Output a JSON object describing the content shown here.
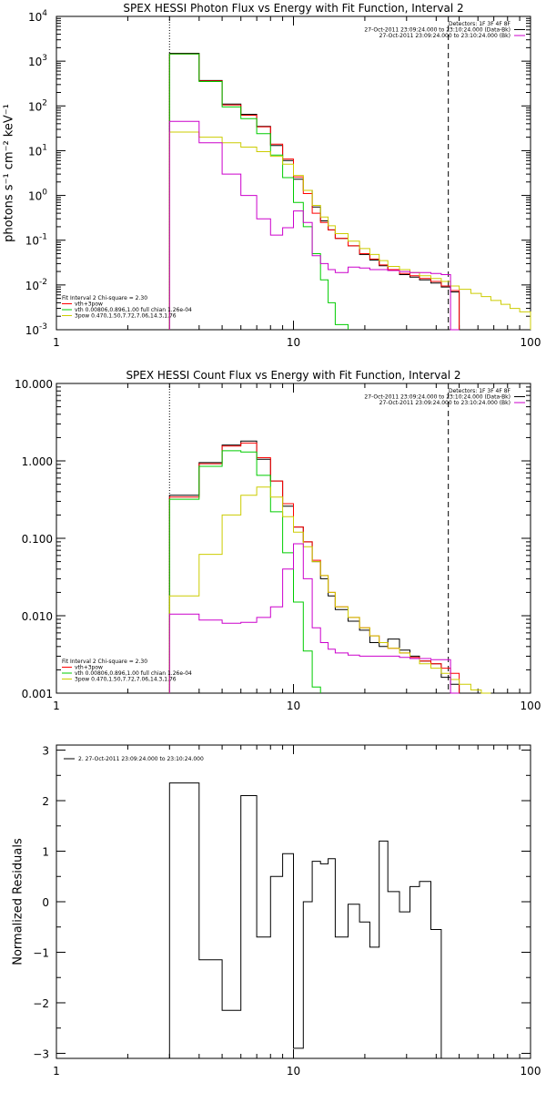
{
  "chart_data": [
    {
      "type": "line",
      "title": "SPEX HESSI Photon Flux vs Energy with Fit Function, Interval 2",
      "ylabel": "photons s⁻¹ cm⁻² keV⁻¹",
      "xlabel": "",
      "xscale": "log",
      "yscale": "log",
      "xlim": [
        1,
        100
      ],
      "ylim": [
        0.001,
        10000
      ],
      "xticks": [
        {
          "v": 1,
          "label": "1"
        },
        {
          "v": 10,
          "label": "10"
        },
        {
          "v": 100,
          "label": "100"
        }
      ],
      "yticks": [
        {
          "exp": -3,
          "label": "10",
          "sup": "-3"
        },
        {
          "exp": -2,
          "label": "10",
          "sup": "-2"
        },
        {
          "exp": -1,
          "label": "10",
          "sup": "-1"
        },
        {
          "exp": 0,
          "label": "10",
          "sup": "0"
        },
        {
          "exp": 1,
          "label": "10",
          "sup": "1"
        },
        {
          "exp": 2,
          "label": "10",
          "sup": "2"
        },
        {
          "exp": 3,
          "label": "10",
          "sup": "3"
        },
        {
          "exp": 4,
          "label": "10",
          "sup": "4"
        }
      ],
      "vlines": [
        {
          "x": 3,
          "style": "dotted"
        },
        {
          "x": 45,
          "style": "dashed"
        }
      ],
      "legend_top_right": [
        {
          "text": "Detectors: 1F 3F 4F 8F",
          "color": ""
        },
        {
          "text": "27-Oct-2011 23:09:24.000 to 23:10:24.000 (Data-Bk)",
          "color": "#000000"
        },
        {
          "text": "27-Oct-2011 23:09:24.000 to 23:10:24.000 (Bk)",
          "color": "#cc00cc"
        }
      ],
      "legend_bottom_left": [
        {
          "text": "Fit Interval 2   Chi-square = 2.30",
          "color": ""
        },
        {
          "text": "vth+3pow",
          "color": "#ff0000"
        },
        {
          "text": "vth 0.00806,0.896,1.00  full chian 1.26e-04",
          "color": "#00cc00"
        },
        {
          "text": "3pow 0.470,1.50,7.72,7.06,14.3,1.76",
          "color": "#cccc00"
        }
      ],
      "edges": [
        3,
        4,
        5,
        6,
        7,
        8,
        9,
        10,
        11,
        12,
        13,
        14,
        15,
        17,
        19,
        21,
        23,
        25,
        28,
        31,
        34,
        38,
        42,
        46,
        50,
        56,
        62,
        68,
        75,
        82,
        90,
        100
      ],
      "series": [
        {
          "name": "Data-Bk",
          "color": "#000000",
          "values": [
            1500,
            370,
            110,
            65,
            35,
            13,
            6,
            2.3,
            1.3,
            0.55,
            0.27,
            0.17,
            0.11,
            0.075,
            0.048,
            0.036,
            0.027,
            0.021,
            0.017,
            0.015,
            0.013,
            0.011,
            0.009,
            0.007
          ]
        },
        {
          "name": "vth+3pow",
          "color": "#ff0000",
          "values": [
            1450,
            360,
            105,
            62,
            34,
            14,
            6.5,
            2.6,
            1.1,
            0.4,
            0.25,
            0.17,
            0.11,
            0.075,
            0.05,
            0.038,
            0.028,
            0.022,
            0.018,
            0.016,
            0.014,
            0.012,
            0.0095,
            0.0075
          ]
        },
        {
          "name": "vth",
          "color": "#00cc00",
          "values": [
            1450,
            350,
            95,
            52,
            24,
            8,
            2.5,
            0.7,
            0.2,
            0.05,
            0.013,
            0.004,
            0.0013
          ]
        },
        {
          "name": "3pow",
          "color": "#cccc00",
          "values": [
            26,
            20,
            15,
            12,
            9.5,
            7.5,
            5,
            2.8,
            1.3,
            0.6,
            0.33,
            0.21,
            0.14,
            0.095,
            0.065,
            0.048,
            0.035,
            0.026,
            0.022,
            0.019,
            0.016,
            0.014,
            0.012,
            0.0095,
            0.008,
            0.0065,
            0.0055,
            0.0045,
            0.0037,
            0.003,
            0.0025
          ]
        },
        {
          "name": "Bk",
          "color": "#cc00cc",
          "values": [
            45,
            15,
            3,
            1,
            0.3,
            0.13,
            0.19,
            0.45,
            0.25,
            0.045,
            0.03,
            0.022,
            0.019,
            0.025,
            0.024,
            0.022,
            0.022,
            0.021,
            0.02,
            0.019,
            0.019,
            0.018,
            0.017,
            0.001
          ]
        }
      ]
    },
    {
      "type": "line",
      "title": "SPEX HESSI Count Flux vs Energy with Fit Function, Interval 2",
      "ylabel": "",
      "xlabel": "",
      "xscale": "log",
      "yscale": "log",
      "xlim": [
        1,
        100
      ],
      "ylim": [
        0.001,
        10
      ],
      "xticks": [
        {
          "v": 1,
          "label": "1"
        },
        {
          "v": 10,
          "label": "10"
        },
        {
          "v": 100,
          "label": "100"
        }
      ],
      "yticks": [
        {
          "exp": -3,
          "label": "0.001",
          "sup": ""
        },
        {
          "exp": -2,
          "label": "0.010",
          "sup": ""
        },
        {
          "exp": -1,
          "label": "0.100",
          "sup": ""
        },
        {
          "exp": 0,
          "label": "1.000",
          "sup": ""
        },
        {
          "exp": 1,
          "label": "10.000",
          "sup": ""
        }
      ],
      "vlines": [
        {
          "x": 3,
          "style": "dotted"
        },
        {
          "x": 45,
          "style": "dashed"
        }
      ],
      "legend_top_right": [
        {
          "text": "Detectors: 1F 3F 4F 8F",
          "color": ""
        },
        {
          "text": "27-Oct-2011 23:09:24.000 to 23:10:24.000 (Data-Bk)",
          "color": "#000000"
        },
        {
          "text": "27-Oct-2011 23:09:24.000 to 23:10:24.000 (Bk)",
          "color": "#cc00cc"
        }
      ],
      "legend_bottom_left": [
        {
          "text": "Fit Interval 2   Chi-square = 2.30",
          "color": ""
        },
        {
          "text": "vth+3pow",
          "color": "#ff0000"
        },
        {
          "text": "vth 0.00806,0.896,1.00  full chian 1.26e-04",
          "color": "#00cc00"
        },
        {
          "text": "3pow 0.470,1.50,7.72,7.06,14.3,1.76",
          "color": "#cccc00"
        }
      ],
      "edges": [
        3,
        4,
        5,
        6,
        7,
        8,
        9,
        10,
        11,
        12,
        13,
        14,
        15,
        17,
        19,
        21,
        23,
        25,
        28,
        31,
        34,
        38,
        42,
        46,
        50,
        56,
        62,
        68,
        75,
        82,
        90,
        100
      ],
      "series": [
        {
          "name": "Data-Bk",
          "color": "#000000",
          "values": [
            0.36,
            0.95,
            1.6,
            1.8,
            1.05,
            0.55,
            0.26,
            0.14,
            0.09,
            0.05,
            0.03,
            0.018,
            0.012,
            0.0085,
            0.0065,
            0.0045,
            0.004,
            0.005,
            0.0036,
            0.003,
            0.0026,
            0.0024,
            0.0016,
            0.0013
          ]
        },
        {
          "name": "vth+3pow",
          "color": "#ff0000",
          "values": [
            0.34,
            0.92,
            1.55,
            1.7,
            1.1,
            0.55,
            0.28,
            0.14,
            0.09,
            0.052,
            0.033,
            0.02,
            0.013,
            0.0095,
            0.007,
            0.0055,
            0.0045,
            0.0038,
            0.0033,
            0.0029,
            0.0026,
            0.0024,
            0.0021,
            0.0018
          ]
        },
        {
          "name": "vth",
          "color": "#00cc00",
          "values": [
            0.32,
            0.85,
            1.35,
            1.3,
            0.65,
            0.22,
            0.065,
            0.015,
            0.0035,
            0.0012
          ]
        },
        {
          "name": "3pow",
          "color": "#cccc00",
          "values": [
            0.018,
            0.062,
            0.2,
            0.36,
            0.46,
            0.34,
            0.19,
            0.12,
            0.078,
            0.05,
            0.033,
            0.02,
            0.013,
            0.0095,
            0.007,
            0.0055,
            0.0045,
            0.0038,
            0.0033,
            0.0028,
            0.0024,
            0.0021,
            0.0018,
            0.0015,
            0.0013,
            0.0011,
            0.001
          ]
        },
        {
          "name": "Bk",
          "color": "#cc00cc",
          "values": [
            0.0105,
            0.0088,
            0.008,
            0.0082,
            0.0095,
            0.013,
            0.04,
            0.085,
            0.03,
            0.007,
            0.0045,
            0.0037,
            0.0033,
            0.0031,
            0.003,
            0.003,
            0.003,
            0.003,
            0.0029,
            0.0028,
            0.0028,
            0.0027,
            0.0027,
            0.001
          ]
        }
      ]
    },
    {
      "type": "line",
      "title": "",
      "ylabel": "Normalized Residuals",
      "xlabel": "",
      "xscale": "log",
      "yscale": "linear",
      "xlim": [
        1,
        100
      ],
      "ylim": [
        -3.1,
        3.1
      ],
      "xticks": [
        {
          "v": 1,
          "label": "1"
        },
        {
          "v": 10,
          "label": "10"
        },
        {
          "v": 100,
          "label": "100"
        }
      ],
      "yticks": [
        {
          "v": -3,
          "label": "−3"
        },
        {
          "v": -2,
          "label": "−2"
        },
        {
          "v": -1,
          "label": "−1"
        },
        {
          "v": 0,
          "label": "0"
        },
        {
          "v": 1,
          "label": "1"
        },
        {
          "v": 2,
          "label": "2"
        },
        {
          "v": 3,
          "label": "3"
        }
      ],
      "vlines": [],
      "legend_top_left": [
        {
          "text": "2. 27-Oct-2011 23:09:24.000 to 23:10:24.000",
          "color": "#000000"
        }
      ],
      "edges": [
        3,
        4,
        5,
        6,
        7,
        8,
        9,
        10,
        11,
        12,
        13,
        14,
        15,
        17,
        19,
        21,
        23,
        25,
        28,
        31,
        34,
        38,
        42,
        46
      ],
      "series": [
        {
          "name": "",
          "color": "#000000",
          "values": [
            2.35,
            -1.15,
            -2.15,
            2.1,
            -0.7,
            0.5,
            0.95,
            -2.9,
            0.0,
            0.8,
            0.75,
            0.85,
            -0.7,
            -0.05,
            -0.4,
            -0.9,
            1.2,
            0.2,
            -0.2,
            0.3,
            0.4,
            -0.55
          ]
        }
      ]
    }
  ]
}
